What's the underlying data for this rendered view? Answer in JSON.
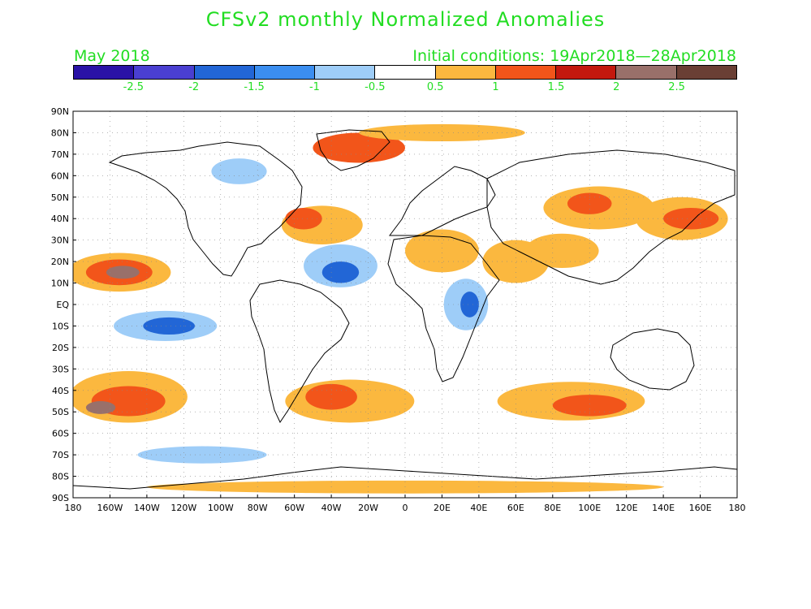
{
  "title": "CFSv2 monthly Normalized Anomalies",
  "month": "May 2018",
  "initial_conditions": "Initial conditions: 19Apr2018—28Apr2018",
  "colorbar": {
    "colors": [
      "#2a12a6",
      "#4a3fd1",
      "#2266d6",
      "#3b8ef0",
      "#9ecdf8",
      "#ffffff",
      "#fbb83f",
      "#f2551a",
      "#c3180e",
      "#99706a",
      "#6a3f34"
    ],
    "labels": [
      "-2.5",
      "-2",
      "-1.5",
      "-1",
      "-0.5",
      "0.5",
      "1",
      "1.5",
      "2",
      "2.5"
    ]
  },
  "lat_labels": [
    "90N",
    "80N",
    "70N",
    "60N",
    "50N",
    "40N",
    "30N",
    "20N",
    "10N",
    "EQ",
    "10S",
    "20S",
    "30S",
    "40S",
    "50S",
    "60S",
    "70S",
    "80S",
    "90S"
  ],
  "lon_labels": [
    "180",
    "160W",
    "140W",
    "120W",
    "100W",
    "80W",
    "60W",
    "40W",
    "20W",
    "0",
    "20E",
    "40E",
    "60E",
    "80E",
    "100E",
    "120E",
    "140E",
    "160E",
    "180"
  ],
  "anomaly_regions": [
    {
      "name": "north-pacific-warm",
      "lon": -155,
      "lat": 15,
      "rx": 28,
      "ry": 9,
      "level": 1
    },
    {
      "name": "north-pacific-strong",
      "lon": -155,
      "lat": 15,
      "rx": 18,
      "ry": 6,
      "level": 2
    },
    {
      "name": "north-pacific-core",
      "lon": -153,
      "lat": 15,
      "rx": 9,
      "ry": 3,
      "level": 3
    },
    {
      "name": "equatorial-pacific-cool",
      "lon": -130,
      "lat": -10,
      "rx": 28,
      "ry": 7,
      "level": -1
    },
    {
      "name": "equatorial-pacific-cool-2",
      "lon": -128,
      "lat": -10,
      "rx": 14,
      "ry": 4,
      "level": -2
    },
    {
      "name": "south-pacific-warm",
      "lon": -150,
      "lat": -43,
      "rx": 32,
      "ry": 12,
      "level": 1
    },
    {
      "name": "south-pacific-strong",
      "lon": -150,
      "lat": -45,
      "rx": 20,
      "ry": 7,
      "level": 2
    },
    {
      "name": "south-pacific-core",
      "lon": -165,
      "lat": -48,
      "rx": 8,
      "ry": 3,
      "level": 3
    },
    {
      "name": "south-atlantic-warm",
      "lon": -30,
      "lat": -45,
      "rx": 35,
      "ry": 10,
      "level": 1
    },
    {
      "name": "south-atlantic-strong",
      "lon": -40,
      "lat": -43,
      "rx": 14,
      "ry": 6,
      "level": 2
    },
    {
      "name": "tropical-atlantic-cool",
      "lon": -35,
      "lat": 18,
      "rx": 20,
      "ry": 10,
      "level": -1
    },
    {
      "name": "tropical-atlantic-cool-2",
      "lon": -35,
      "lat": 15,
      "rx": 10,
      "ry": 5,
      "level": -2
    },
    {
      "name": "east-africa-cool",
      "lon": 33,
      "lat": 0,
      "rx": 12,
      "ry": 12,
      "level": -1
    },
    {
      "name": "east-africa-cool-2",
      "lon": 35,
      "lat": 0,
      "rx": 5,
      "ry": 6,
      "level": -2
    },
    {
      "name": "north-atlantic-warm",
      "lon": -45,
      "lat": 37,
      "rx": 22,
      "ry": 9,
      "level": 1
    },
    {
      "name": "north-atlantic-strong",
      "lon": -55,
      "lat": 40,
      "rx": 10,
      "ry": 5,
      "level": 2
    },
    {
      "name": "greenland-warm",
      "lon": -25,
      "lat": 73,
      "rx": 25,
      "ry": 7,
      "level": 2
    },
    {
      "name": "arctic-warm",
      "lon": 20,
      "lat": 80,
      "rx": 45,
      "ry": 4,
      "level": 1
    },
    {
      "name": "north-africa-warm",
      "lon": 20,
      "lat": 25,
      "rx": 20,
      "ry": 10,
      "level": 1
    },
    {
      "name": "arabia-warm",
      "lon": 60,
      "lat": 20,
      "rx": 18,
      "ry": 10,
      "level": 1
    },
    {
      "name": "india-warm",
      "lon": 85,
      "lat": 25,
      "rx": 20,
      "ry": 8,
      "level": 1
    },
    {
      "name": "asia-warm",
      "lon": 105,
      "lat": 45,
      "rx": 30,
      "ry": 10,
      "level": 1
    },
    {
      "name": "asia-strong",
      "lon": 100,
      "lat": 47,
      "rx": 12,
      "ry": 5,
      "level": 2
    },
    {
      "name": "northwest-pacific-warm",
      "lon": 150,
      "lat": 40,
      "rx": 25,
      "ry": 10,
      "level": 1
    },
    {
      "name": "northwest-pacific-strong",
      "lon": 155,
      "lat": 40,
      "rx": 15,
      "ry": 5,
      "level": 2
    },
    {
      "name": "southern-indian-warm",
      "lon": 90,
      "lat": -45,
      "rx": 40,
      "ry": 9,
      "level": 1
    },
    {
      "name": "southern-indian-strong",
      "lon": 100,
      "lat": -47,
      "rx": 20,
      "ry": 5,
      "level": 2
    },
    {
      "name": "antarctic-warm",
      "lon": 0,
      "lat": -85,
      "rx": 140,
      "ry": 3,
      "level": 1
    },
    {
      "name": "southern-ocean-cool",
      "lon": -110,
      "lat": -70,
      "rx": 35,
      "ry": 4,
      "level": -1
    },
    {
      "name": "north-america-cool",
      "lon": -90,
      "lat": 62,
      "rx": 15,
      "ry": 6,
      "level": -1
    }
  ]
}
